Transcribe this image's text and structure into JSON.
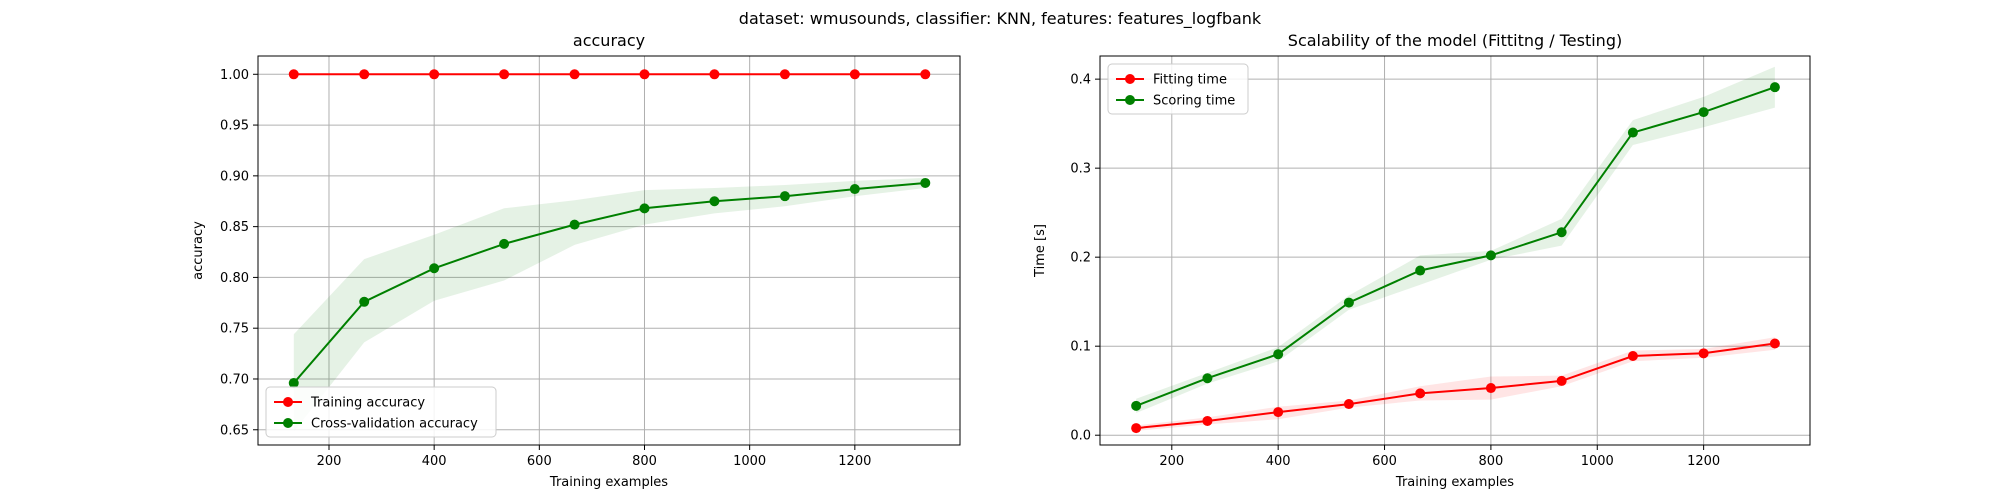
{
  "suptitle": "dataset: wmusounds, classifier: KNN, features: features_logfbank",
  "chart_data": [
    {
      "type": "line",
      "title": "accuracy",
      "xlabel": "Training examples",
      "ylabel": "accuracy",
      "xlim": [
        65,
        1400
      ],
      "ylim": [
        0.635,
        1.018
      ],
      "xticks": [
        200,
        400,
        600,
        800,
        1000,
        1200
      ],
      "yticks": [
        0.65,
        0.7,
        0.75,
        0.8,
        0.85,
        0.9,
        0.95,
        1.0
      ],
      "tick_decimals": 2,
      "grid": true,
      "legend_position": "lower-left",
      "x": [
        133,
        267,
        400,
        533,
        667,
        800,
        933,
        1067,
        1200,
        1334
      ],
      "series": [
        {
          "name": "Training accuracy",
          "color": "#ff0000",
          "values": [
            1.0,
            1.0,
            1.0,
            1.0,
            1.0,
            1.0,
            1.0,
            1.0,
            1.0,
            1.0
          ],
          "lower": [
            1.0,
            1.0,
            1.0,
            1.0,
            1.0,
            1.0,
            1.0,
            1.0,
            1.0,
            1.0
          ],
          "upper": [
            1.0,
            1.0,
            1.0,
            1.0,
            1.0,
            1.0,
            1.0,
            1.0,
            1.0,
            1.0
          ]
        },
        {
          "name": "Cross-validation accuracy",
          "color": "#008000",
          "values": [
            0.696,
            0.776,
            0.809,
            0.833,
            0.852,
            0.868,
            0.875,
            0.88,
            0.887,
            0.893
          ],
          "lower": [
            0.648,
            0.736,
            0.777,
            0.797,
            0.832,
            0.852,
            0.863,
            0.87,
            0.88,
            0.888
          ],
          "upper": [
            0.744,
            0.818,
            0.842,
            0.868,
            0.876,
            0.886,
            0.888,
            0.891,
            0.895,
            0.898
          ]
        }
      ]
    },
    {
      "type": "line",
      "title": "Scalability of the model (Fittitng / Testing)",
      "xlabel": "Training examples",
      "ylabel": "Time [s]",
      "xlim": [
        65,
        1400
      ],
      "ylim": [
        -0.011,
        0.426
      ],
      "xticks": [
        200,
        400,
        600,
        800,
        1000,
        1200
      ],
      "yticks": [
        0.0,
        0.1,
        0.2,
        0.3,
        0.4
      ],
      "tick_decimals": 1,
      "grid": true,
      "legend_position": "upper-left",
      "x": [
        133,
        267,
        400,
        533,
        667,
        800,
        933,
        1067,
        1200,
        1334
      ],
      "series": [
        {
          "name": "Fitting time",
          "color": "#ff0000",
          "values": [
            0.008,
            0.016,
            0.026,
            0.035,
            0.047,
            0.053,
            0.061,
            0.089,
            0.092,
            0.103
          ],
          "lower": [
            0.005,
            0.012,
            0.018,
            0.031,
            0.039,
            0.04,
            0.055,
            0.083,
            0.087,
            0.096
          ],
          "upper": [
            0.011,
            0.02,
            0.032,
            0.039,
            0.055,
            0.066,
            0.067,
            0.095,
            0.097,
            0.11
          ]
        },
        {
          "name": "Scoring time",
          "color": "#008000",
          "values": [
            0.033,
            0.064,
            0.091,
            0.149,
            0.185,
            0.202,
            0.228,
            0.34,
            0.363,
            0.391
          ],
          "lower": [
            0.025,
            0.058,
            0.083,
            0.141,
            0.169,
            0.197,
            0.213,
            0.326,
            0.346,
            0.368
          ],
          "upper": [
            0.041,
            0.07,
            0.099,
            0.157,
            0.202,
            0.207,
            0.243,
            0.354,
            0.38,
            0.414
          ]
        }
      ]
    }
  ]
}
